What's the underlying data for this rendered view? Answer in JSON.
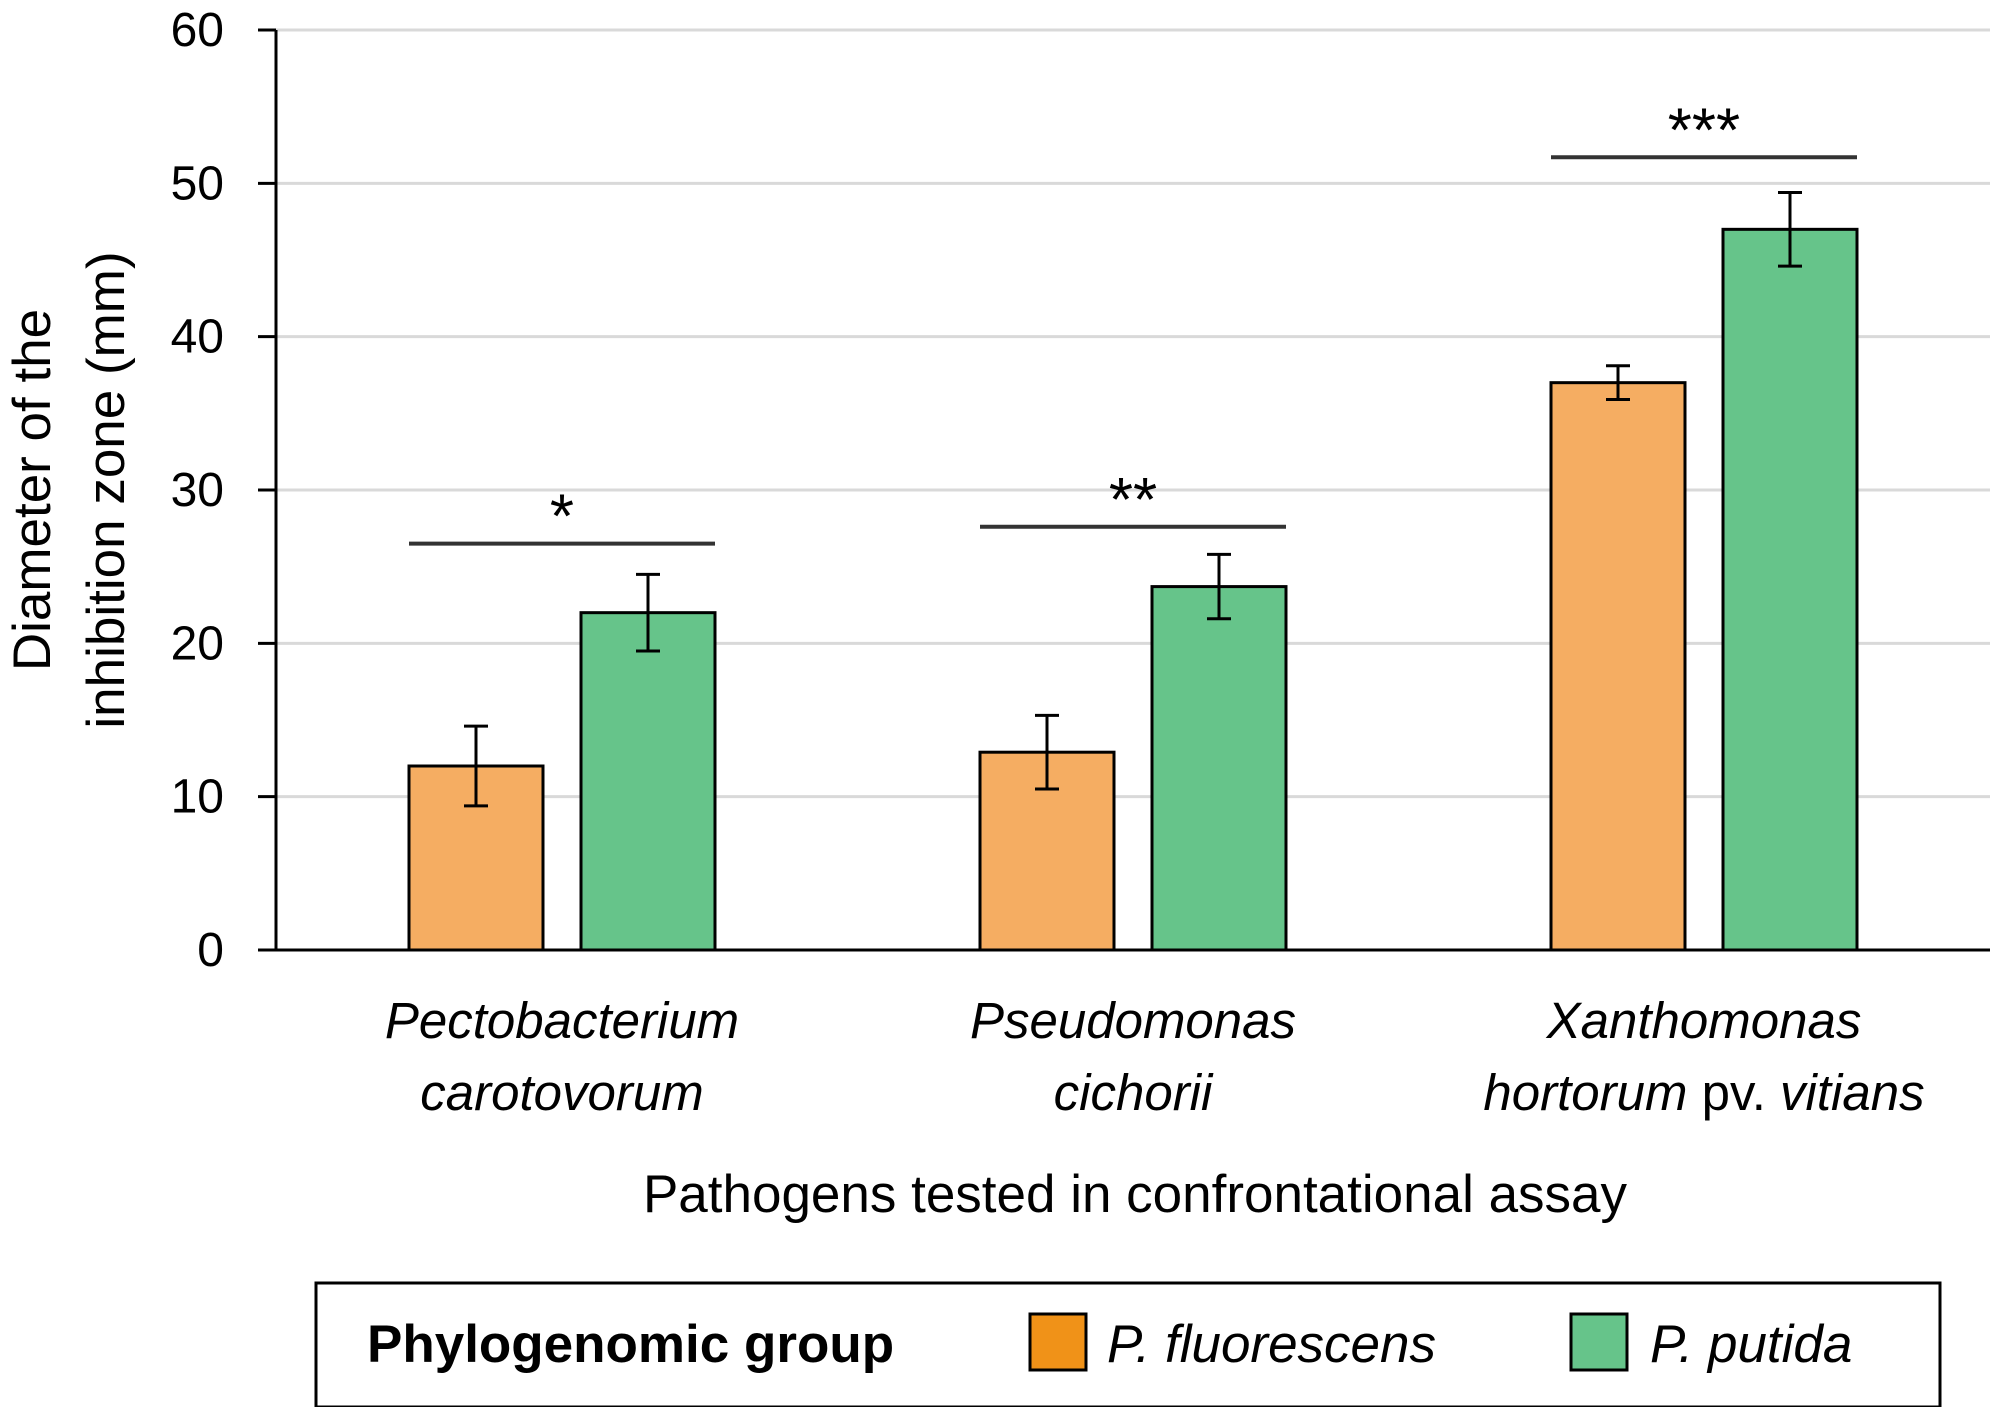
{
  "chart_data": {
    "type": "bar",
    "ylabel_lines": [
      "Diameter of the",
      "inhibition zone (mm)"
    ],
    "xlabel": "Pathogens tested in confrontational assay",
    "ylim": [
      0,
      60
    ],
    "yticks": [
      0,
      10,
      20,
      30,
      40,
      50,
      60
    ],
    "grid": true,
    "categories": [
      {
        "lines": [
          [
            {
              "text": "Pectobacterium",
              "italic": true
            }
          ],
          [
            {
              "text": "carotovorum",
              "italic": true
            }
          ]
        ]
      },
      {
        "lines": [
          [
            {
              "text": "Pseudomonas",
              "italic": true
            }
          ],
          [
            {
              "text": "cichorii",
              "italic": true
            }
          ]
        ]
      },
      {
        "lines": [
          [
            {
              "text": "Xanthomonas",
              "italic": true
            }
          ],
          [
            {
              "text": "hortorum",
              "italic": true
            },
            {
              "text": " pv. ",
              "italic": false
            },
            {
              "text": "vitians",
              "italic": true
            }
          ]
        ]
      }
    ],
    "series": [
      {
        "name": "P. fluorescens",
        "color": "#f5ad62",
        "values": [
          12.0,
          12.9,
          37.0
        ],
        "errors": [
          2.6,
          2.4,
          1.1
        ]
      },
      {
        "name": "P. putida",
        "color": "#66c48a",
        "values": [
          22.0,
          23.7,
          47.0
        ],
        "errors": [
          2.5,
          2.1,
          2.4
        ]
      }
    ],
    "significance": [
      {
        "label": "*",
        "line_value": 26.5
      },
      {
        "label": "**",
        "line_value": 27.6
      },
      {
        "label": "***",
        "line_value": 51.7
      }
    ],
    "legend": {
      "title": "Phylogenomic group",
      "placement": "bottom",
      "entries": [
        {
          "label": "P. fluorescens",
          "color": "#f09218"
        },
        {
          "label": "P. putida",
          "color": "#66c48a"
        }
      ]
    }
  }
}
